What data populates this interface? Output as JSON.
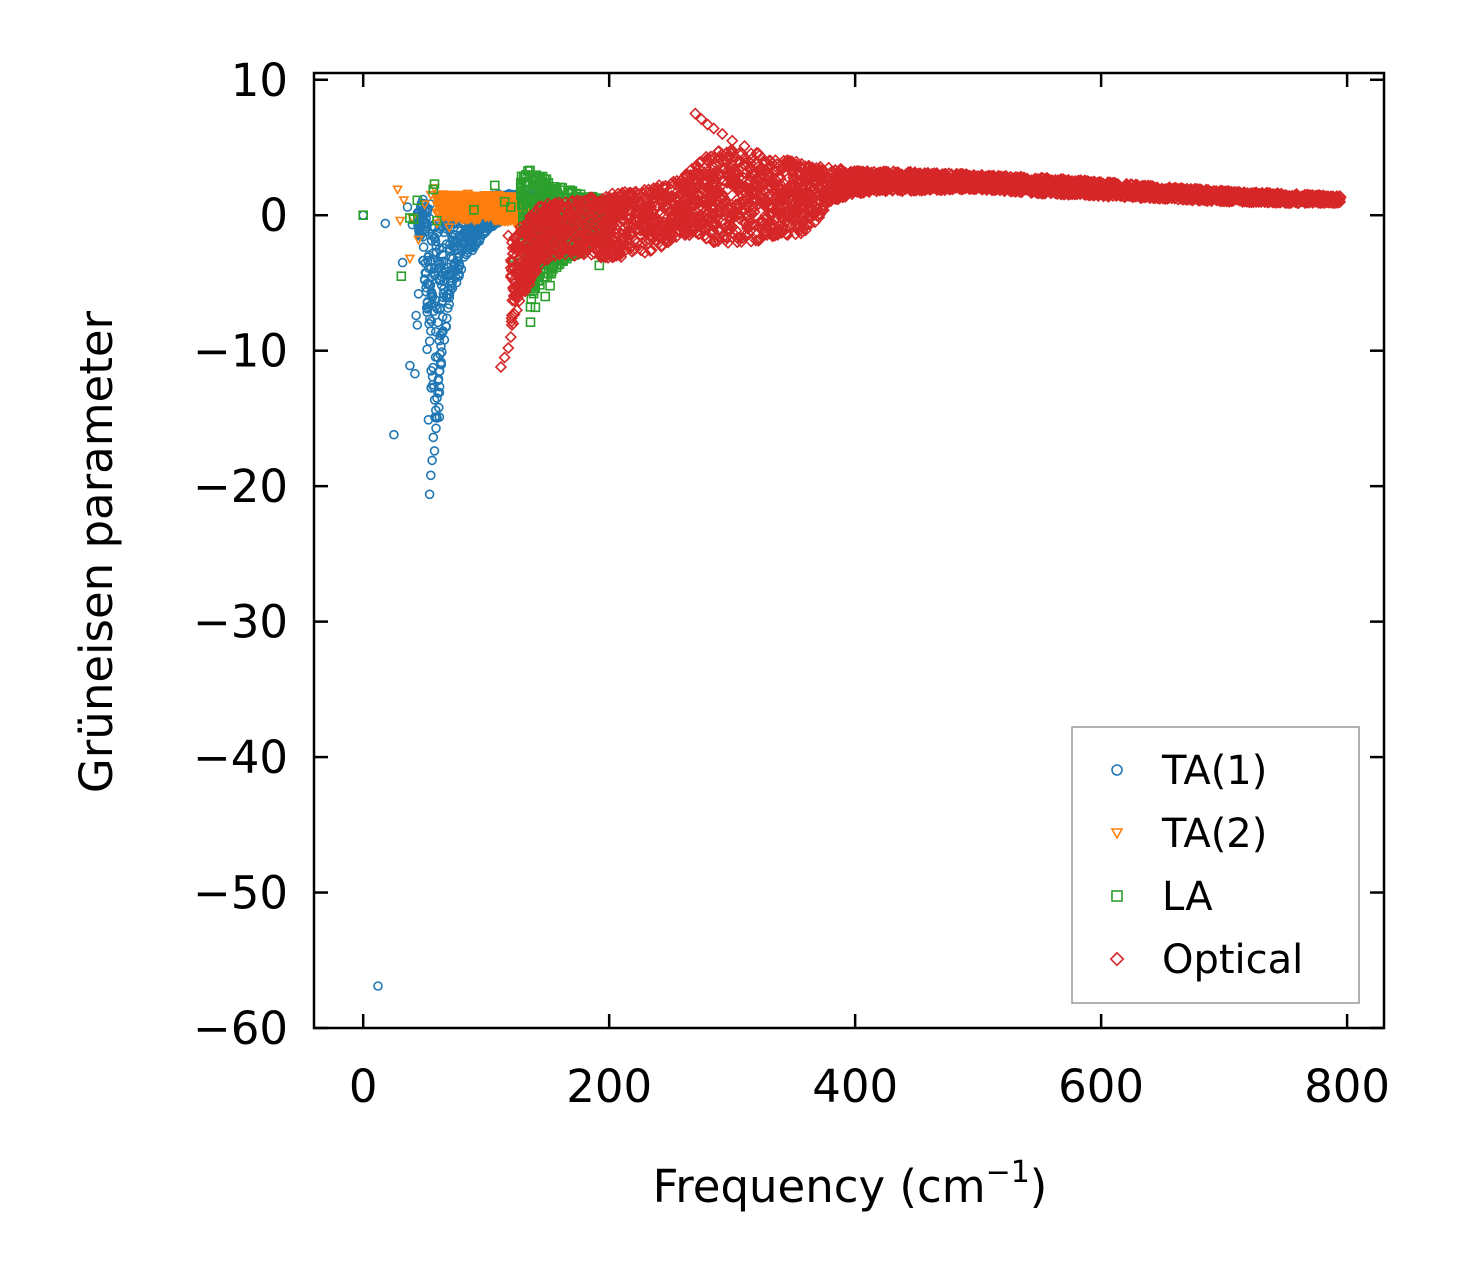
{
  "chart_data": {
    "type": "scatter",
    "title": "",
    "xlabel": "Frequency (cm",
    "xlabel_sup": "−1",
    "xlabel_end": ")",
    "ylabel": "Grüneisen parameter",
    "xlim": [
      -40,
      830
    ],
    "ylim": [
      -60,
      10.5
    ],
    "xticks": [
      0,
      200,
      400,
      600,
      800
    ],
    "xtick_labels": [
      "0",
      "200",
      "400",
      "600",
      "800"
    ],
    "yticks": [
      10,
      0,
      -10,
      -20,
      -30,
      -40,
      -50,
      -60
    ],
    "ytick_labels": [
      "10",
      "0",
      "−10",
      "−20",
      "−30",
      "−40",
      "−50",
      "−60"
    ],
    "grid": false,
    "legend_position": "lower-right",
    "series": [
      {
        "name": "TA(1)",
        "marker": "circle",
        "color": "#1f77b4",
        "points": [
          [
            0,
            0
          ],
          [
            12,
            -56.9
          ],
          [
            18,
            -0.6
          ],
          [
            25,
            -16.2
          ],
          [
            32,
            -3.5
          ],
          [
            36,
            0.6
          ],
          [
            38,
            -11.1
          ],
          [
            40,
            -0.7
          ],
          [
            42,
            -11.7
          ],
          [
            43,
            -7.4
          ],
          [
            44,
            -8.1
          ],
          [
            45,
            -5.8
          ],
          [
            46,
            0.3
          ],
          [
            48,
            -1.2
          ],
          [
            50,
            -4.8
          ],
          [
            52,
            -9.9
          ],
          [
            53,
            -15.1
          ],
          [
            54,
            -20.6
          ],
          [
            55,
            -19.2
          ],
          [
            56,
            -18.1
          ],
          [
            57,
            -16.4
          ],
          [
            58,
            -17.4
          ],
          [
            59,
            -14.4
          ],
          [
            60,
            -13.5
          ],
          [
            61,
            -12.2
          ],
          [
            62,
            -14.9
          ],
          [
            63,
            -11.0
          ],
          [
            64,
            -10.1
          ],
          [
            66,
            -9.2
          ],
          [
            68,
            -7.6
          ],
          [
            70,
            -6.1
          ],
          [
            72,
            -5.2
          ],
          [
            75,
            -4.1
          ],
          [
            78,
            -3.0
          ],
          [
            80,
            -2.5
          ],
          [
            84,
            -1.6
          ],
          [
            88,
            -0.9
          ],
          [
            92,
            -0.3
          ],
          [
            96,
            0.2
          ],
          [
            100,
            0.5
          ],
          [
            105,
            0.7
          ],
          [
            110,
            0.9
          ],
          [
            115,
            1.0
          ],
          [
            120,
            1.1
          ],
          [
            125,
            1.2
          ],
          [
            130,
            1.3
          ],
          [
            138,
            1.1
          ],
          [
            145,
            1.3
          ]
        ],
        "band": [
          [
            44,
            -0.5,
            1.0
          ],
          [
            48,
            -3.0,
            1.2
          ],
          [
            52,
            -7.5,
            1.2
          ],
          [
            56,
            -14.0,
            1.0
          ],
          [
            60,
            -16.5,
            0.9
          ],
          [
            64,
            -10.5,
            0.9
          ],
          [
            68,
            -8.0,
            1.0
          ],
          [
            72,
            -6.0,
            1.1
          ],
          [
            80,
            -4.0,
            1.3
          ],
          [
            90,
            -2.5,
            1.4
          ],
          [
            100,
            -1.2,
            1.5
          ],
          [
            112,
            -0.4,
            1.6
          ],
          [
            125,
            0.1,
            1.6
          ],
          [
            140,
            0.5,
            1.5
          ],
          [
            148,
            0.8,
            1.3
          ]
        ]
      },
      {
        "name": "TA(2)",
        "marker": "triangle-down",
        "color": "#ff7f0e",
        "points": [
          [
            28,
            1.9
          ],
          [
            30,
            -0.4
          ],
          [
            33,
            1.1
          ],
          [
            38,
            -3.2
          ],
          [
            40,
            -0.2
          ],
          [
            45,
            -1.8
          ],
          [
            50,
            0.8
          ],
          [
            55,
            1.5
          ],
          [
            58,
            2.0
          ],
          [
            60,
            -0.6
          ],
          [
            66,
            0.3
          ],
          [
            70,
            -0.9
          ],
          [
            75,
            1.2
          ],
          [
            80,
            0.7
          ],
          [
            85,
            1.6
          ],
          [
            90,
            1.3
          ],
          [
            95,
            0.4
          ],
          [
            100,
            1.1
          ],
          [
            105,
            0.8
          ],
          [
            110,
            1.5
          ],
          [
            115,
            1.0
          ],
          [
            120,
            0.9
          ],
          [
            125,
            1.3
          ],
          [
            130,
            1.2
          ],
          [
            135,
            0.8
          ],
          [
            140,
            1.0
          ],
          [
            146,
            0.6
          ],
          [
            150,
            0.5
          ]
        ],
        "band": [
          [
            60,
            0.0,
            1.6
          ],
          [
            80,
            -0.5,
            1.5
          ],
          [
            100,
            -0.3,
            1.5
          ],
          [
            120,
            -0.5,
            1.4
          ],
          [
            140,
            -2.0,
            1.2
          ],
          [
            150,
            -1.5,
            1.0
          ]
        ]
      },
      {
        "name": "LA",
        "marker": "square",
        "color": "#2ca02c",
        "points": [
          [
            0,
            0
          ],
          [
            31,
            -4.5
          ],
          [
            38,
            -0.2
          ],
          [
            41,
            -0.3
          ],
          [
            44,
            1.1
          ],
          [
            57,
            1.9
          ],
          [
            58,
            2.3
          ],
          [
            60,
            -0.4
          ],
          [
            90,
            0.4
          ],
          [
            107,
            2.2
          ],
          [
            115,
            1.0
          ],
          [
            120,
            0.6
          ],
          [
            122,
            -3.7
          ],
          [
            128,
            -3.5
          ],
          [
            132,
            -4.7
          ],
          [
            136,
            -7.9
          ],
          [
            140,
            -6.8
          ],
          [
            145,
            -2.6
          ],
          [
            148,
            -6.0
          ],
          [
            152,
            -5.2
          ],
          [
            160,
            -1.5
          ],
          [
            170,
            -0.6
          ],
          [
            182,
            -1.7
          ],
          [
            185,
            1.0
          ],
          [
            192,
            -3.7
          ],
          [
            195,
            0.9
          ],
          [
            210,
            1.1
          ]
        ],
        "band": [
          [
            128,
            1.0,
            3.2
          ],
          [
            135,
            -7.0,
            3.6
          ],
          [
            140,
            -6.0,
            3.4
          ],
          [
            145,
            -5.0,
            3.0
          ],
          [
            150,
            -4.6,
            2.6
          ],
          [
            160,
            -3.8,
            2.2
          ],
          [
            170,
            -3.2,
            1.8
          ],
          [
            180,
            -2.6,
            1.5
          ],
          [
            190,
            -2.2,
            1.3
          ],
          [
            200,
            -1.0,
            1.2
          ],
          [
            208,
            0.6,
            1.2
          ]
        ]
      },
      {
        "name": "Optical",
        "marker": "diamond",
        "color": "#d62728",
        "points": [
          [
            112,
            -11.2
          ],
          [
            115,
            -10.5
          ],
          [
            118,
            -9.8
          ],
          [
            120,
            -9.0
          ],
          [
            122,
            -8.0
          ],
          [
            125,
            -7.0
          ],
          [
            128,
            -5.6
          ],
          [
            130,
            -4.0
          ],
          [
            118,
            -1.5
          ],
          [
            124,
            -2.2
          ],
          [
            270,
            7.5
          ],
          [
            275,
            7.1
          ],
          [
            280,
            6.7
          ],
          [
            285,
            6.4
          ],
          [
            290,
            3.8
          ],
          [
            292,
            6.0
          ],
          [
            296,
            2.4
          ],
          [
            300,
            5.5
          ],
          [
            305,
            4.0
          ],
          [
            310,
            5.1
          ],
          [
            320,
            4.6
          ]
        ],
        "band": [
          [
            120,
            -8.5,
            -2.0
          ],
          [
            130,
            -6.0,
            -0.5
          ],
          [
            145,
            -3.5,
            0.8
          ],
          [
            160,
            -3.0,
            1.0
          ],
          [
            180,
            -3.0,
            1.3
          ],
          [
            200,
            -3.2,
            1.6
          ],
          [
            220,
            -3.0,
            1.8
          ],
          [
            240,
            -2.5,
            2.2
          ],
          [
            260,
            -1.5,
            2.8
          ],
          [
            275,
            -1.6,
            4.2
          ],
          [
            290,
            -2.2,
            4.8
          ],
          [
            300,
            -2.0,
            4.9
          ],
          [
            320,
            -2.0,
            4.6
          ],
          [
            340,
            -1.5,
            4.2
          ],
          [
            355,
            -1.4,
            3.9
          ],
          [
            370,
            -0.5,
            3.6
          ],
          [
            380,
            1.0,
            3.5
          ],
          [
            400,
            1.6,
            3.3
          ],
          [
            450,
            1.8,
            3.2
          ],
          [
            500,
            1.9,
            3.0
          ],
          [
            550,
            1.6,
            2.8
          ],
          [
            600,
            1.4,
            2.5
          ],
          [
            650,
            1.2,
            2.1
          ],
          [
            700,
            1.0,
            1.8
          ],
          [
            750,
            0.9,
            1.6
          ],
          [
            795,
            0.9,
            1.4
          ]
        ]
      }
    ]
  }
}
